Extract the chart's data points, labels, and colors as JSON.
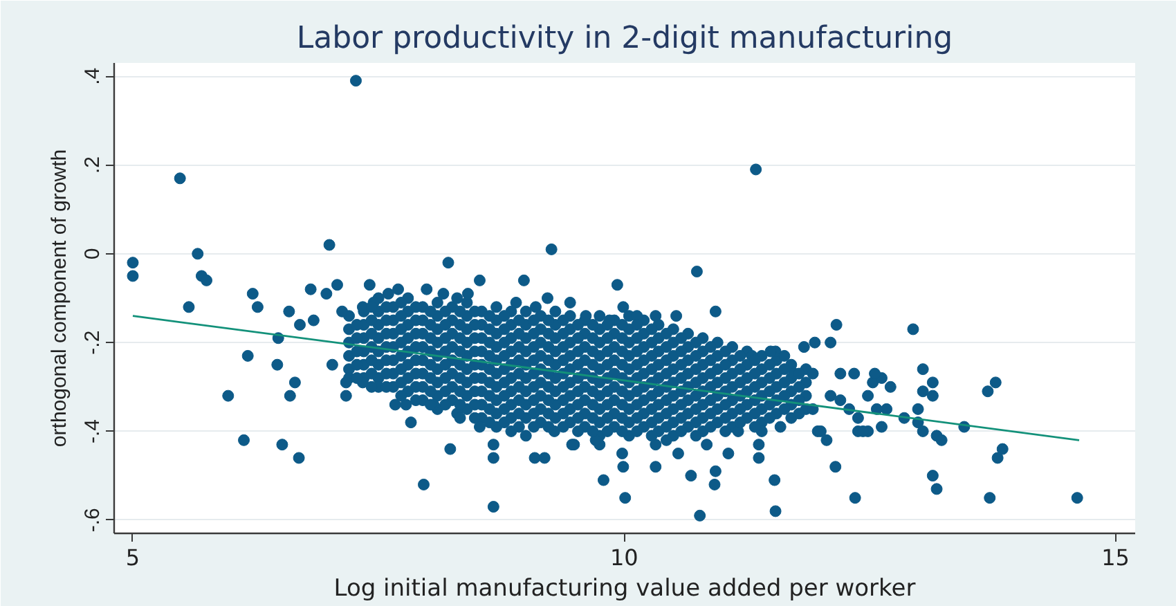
{
  "chart_data": {
    "type": "scatter",
    "title": "Labor productivity in 2-digit manufacturing",
    "xlabel": "Log initial manufacturing value added per worker",
    "ylabel": "orthogonal component of growth",
    "xlim": [
      4.81,
      15.2
    ],
    "ylim": [
      -0.63,
      0.43
    ],
    "xticks": [
      5,
      10,
      15
    ],
    "yticks": [
      {
        "value": -0.6,
        "label": "-.6"
      },
      {
        "value": -0.4,
        "label": "-.4"
      },
      {
        "value": -0.2,
        "label": "-.2"
      },
      0,
      {
        "value": 0.2,
        "label": ".2"
      },
      {
        "value": 0.4,
        "label": ".4"
      }
    ],
    "grid": "y",
    "series": [
      {
        "color": "#0d5a88",
        "marker": "circle",
        "x": [
          7.2,
          7.2,
          7.2,
          7.2,
          7.2,
          7.2,
          7.35,
          7.35,
          7.35,
          7.35,
          7.35,
          7.35,
          7.5,
          7.5,
          7.5,
          7.5,
          7.5,
          7.5,
          7.5,
          7.5,
          7.65,
          7.65,
          7.65,
          7.65,
          7.65,
          7.65,
          7.65,
          7.8,
          7.8,
          7.8,
          7.8,
          7.8,
          7.8,
          7.8,
          7.8,
          7.95,
          7.95,
          7.95,
          7.95,
          7.95,
          7.95,
          7.95,
          7.95,
          8.1,
          8.1,
          8.1,
          8.1,
          8.1,
          8.1,
          8.1,
          8.1,
          8.1,
          8.25,
          8.25,
          8.25,
          8.25,
          8.25,
          8.25,
          8.25,
          8.25,
          8.4,
          8.4,
          8.4,
          8.4,
          8.4,
          8.4,
          8.4,
          8.4,
          8.4,
          8.55,
          8.55,
          8.55,
          8.55,
          8.55,
          8.55,
          8.55,
          8.55,
          8.55,
          8.7,
          8.7,
          8.7,
          8.7,
          8.7,
          8.7,
          8.7,
          8.7,
          8.7,
          8.7,
          8.85,
          8.85,
          8.85,
          8.85,
          8.85,
          8.85,
          8.85,
          8.85,
          8.85,
          8.85,
          9.0,
          9.0,
          9.0,
          9.0,
          9.0,
          9.0,
          9.0,
          9.0,
          9.0,
          9.15,
          9.15,
          9.15,
          9.15,
          9.15,
          9.15,
          9.15,
          9.15,
          9.15,
          9.3,
          9.3,
          9.3,
          9.3,
          9.3,
          9.3,
          9.3,
          9.3,
          9.3,
          9.45,
          9.45,
          9.45,
          9.45,
          9.45,
          9.45,
          9.45,
          9.45,
          9.45,
          9.6,
          9.6,
          9.6,
          9.6,
          9.6,
          9.6,
          9.6,
          9.6,
          9.6,
          9.75,
          9.75,
          9.75,
          9.75,
          9.75,
          9.75,
          9.75,
          9.75,
          9.75,
          9.75,
          9.9,
          9.9,
          9.9,
          9.9,
          9.9,
          9.9,
          9.9,
          9.9,
          9.9,
          10.05,
          10.05,
          10.05,
          10.05,
          10.05,
          10.05,
          10.05,
          10.05,
          10.05,
          10.05,
          10.2,
          10.2,
          10.2,
          10.2,
          10.2,
          10.2,
          10.2,
          10.2,
          10.2,
          10.35,
          10.35,
          10.35,
          10.35,
          10.35,
          10.35,
          10.35,
          10.35,
          10.35,
          10.5,
          10.5,
          10.5,
          10.5,
          10.5,
          10.5,
          10.5,
          10.5,
          10.5,
          10.65,
          10.65,
          10.65,
          10.65,
          10.65,
          10.65,
          10.65,
          10.65,
          10.8,
          10.8,
          10.8,
          10.8,
          10.8,
          10.8,
          10.8,
          10.8,
          10.95,
          10.95,
          10.95,
          10.95,
          10.95,
          10.95,
          10.95,
          11.1,
          11.1,
          11.1,
          11.1,
          11.1,
          11.1,
          11.1,
          11.25,
          11.25,
          11.25,
          11.25,
          11.25,
          11.25,
          11.4,
          11.4,
          11.4,
          11.4,
          11.4,
          11.4,
          11.55,
          11.55,
          11.55,
          11.55,
          11.55,
          11.7,
          11.7,
          11.7,
          11.7,
          11.7,
          11.85,
          11.85,
          11.85,
          11.85,
          7.27,
          5.48,
          5.0,
          5.0,
          5.66,
          5.7,
          5.75,
          5.57,
          7.0,
          6.22,
          6.27,
          6.59,
          6.48,
          6.17,
          6.47,
          5.97,
          6.65,
          6.6,
          6.13,
          6.52,
          6.69,
          6.81,
          6.97,
          7.08,
          7.17,
          7.17,
          7.83,
          7.67,
          7.41,
          8.67,
          7.96,
          8.23,
          8.67,
          8.67,
          9.09,
          9.19,
          9.49,
          9.79,
          9.99,
          10.01,
          10.32,
          9.75,
          9.98,
          9.26,
          8.21,
          8.53,
          8.98,
          9.93,
          9.22,
          9.45,
          9.99,
          7.99,
          8.16,
          8.41,
          11.34,
          10.74,
          10.93,
          12.16,
          12.94,
          11.94,
          12.1,
          13.04,
          13.14,
          13.04,
          13.14,
          13.78,
          13.7,
          13.46,
          13.85,
          13.8,
          14.61,
          13.72,
          13.14,
          13.18,
          12.35,
          12.15,
          11.54,
          10.77,
          11.53,
          10.68,
          10.93,
          10.92,
          11.06,
          11.37,
          11.37,
          10.53,
          10.32,
          6.7,
          6.84,
          7.13,
          7.34,
          7.03,
          7.34,
          7.78,
          8.06,
          8.3,
          8.53,
          9.0,
          9.29,
          9.71,
          11.83,
          11.54,
          11.63,
          11.73,
          11.92,
          12.2,
          12.34,
          12.53,
          12.62,
          12.71,
          12.48,
          12.57,
          12.67,
          12.85,
          12.99,
          13.04,
          13.18,
          13.23,
          12.99,
          12.62,
          12.38,
          12.48,
          11.97,
          12.06,
          12.29,
          12.38,
          12.1,
          12.2,
          11.92,
          9.47,
          10.55,
          10.84,
          11.16,
          11.4,
          11.59,
          10.32,
          9.61,
          9.85,
          10.13,
          11.49,
          11.3,
          12.55,
          12.0,
          12.43,
          7.6,
          7.7,
          8.3,
          7.45,
          9.1,
          8.9,
          7.28,
          7.28,
          7.28,
          7.28,
          7.28,
          7.43,
          7.43,
          7.43,
          7.43,
          7.43,
          7.43,
          7.43,
          7.58,
          7.58,
          7.58,
          7.58,
          7.58,
          7.58,
          7.58,
          7.73,
          7.73,
          7.73,
          7.73,
          7.73,
          7.73,
          7.73,
          7.73,
          7.88,
          7.88,
          7.88,
          7.88,
          7.88,
          7.88,
          7.88,
          7.88,
          8.03,
          8.03,
          8.03,
          8.03,
          8.03,
          8.03,
          8.03,
          8.03,
          8.18,
          8.18,
          8.18,
          8.18,
          8.18,
          8.18,
          8.18,
          8.18,
          8.33,
          8.33,
          8.33,
          8.33,
          8.33,
          8.33,
          8.33,
          8.33,
          8.33,
          8.48,
          8.48,
          8.48,
          8.48,
          8.48,
          8.48,
          8.48,
          8.48,
          8.48,
          8.63,
          8.63,
          8.63,
          8.63,
          8.63,
          8.63,
          8.63,
          8.63,
          8.63,
          8.78,
          8.78,
          8.78,
          8.78,
          8.78,
          8.78,
          8.78,
          8.78,
          8.78,
          8.93,
          8.93,
          8.93,
          8.93,
          8.93,
          8.93,
          8.93,
          8.93,
          8.93,
          9.08,
          9.08,
          9.08,
          9.08,
          9.08,
          9.08,
          9.08,
          9.08,
          9.08,
          9.23,
          9.23,
          9.23,
          9.23,
          9.23,
          9.23,
          9.23,
          9.23,
          9.23,
          9.38,
          9.38,
          9.38,
          9.38,
          9.38,
          9.38,
          9.38,
          9.38,
          9.38,
          9.53,
          9.53,
          9.53,
          9.53,
          9.53,
          9.53,
          9.53,
          9.53,
          9.53,
          9.68,
          9.68,
          9.68,
          9.68,
          9.68,
          9.68,
          9.68,
          9.68,
          9.68,
          9.83,
          9.83,
          9.83,
          9.83,
          9.83,
          9.83,
          9.83,
          9.83,
          9.83,
          9.98,
          9.98,
          9.98,
          9.98,
          9.98,
          9.98,
          9.98,
          9.98,
          9.98,
          10.13,
          10.13,
          10.13,
          10.13,
          10.13,
          10.13,
          10.13,
          10.13,
          10.13,
          10.28,
          10.28,
          10.28,
          10.28,
          10.28,
          10.28,
          10.28,
          10.28,
          10.28,
          10.43,
          10.43,
          10.43,
          10.43,
          10.43,
          10.43,
          10.43,
          10.43,
          10.43,
          10.58,
          10.58,
          10.58,
          10.58,
          10.58,
          10.58,
          10.58,
          10.58,
          10.73,
          10.73,
          10.73,
          10.73,
          10.73,
          10.73,
          10.73,
          10.73,
          10.88,
          10.88,
          10.88,
          10.88,
          10.88,
          10.88,
          10.88,
          11.03,
          11.03,
          11.03,
          11.03,
          11.03,
          11.03,
          11.03,
          11.18,
          11.18,
          11.18,
          11.18,
          11.18,
          11.18,
          11.33,
          11.33,
          11.33,
          11.33,
          11.33,
          11.33,
          11.48,
          11.48,
          11.48,
          11.48,
          11.48,
          11.63,
          11.63,
          11.63,
          11.63,
          11.78,
          11.78,
          11.78,
          11.78
        ],
        "values": [
          -0.14,
          -0.17,
          -0.2,
          -0.23,
          -0.26,
          -0.28,
          -0.13,
          -0.16,
          -0.19,
          -0.22,
          -0.25,
          -0.28,
          -0.1,
          -0.13,
          -0.16,
          -0.19,
          -0.22,
          -0.25,
          -0.28,
          -0.3,
          -0.12,
          -0.15,
          -0.18,
          -0.21,
          -0.24,
          -0.27,
          -0.3,
          -0.1,
          -0.13,
          -0.16,
          -0.19,
          -0.22,
          -0.25,
          -0.28,
          -0.31,
          -0.12,
          -0.15,
          -0.18,
          -0.21,
          -0.24,
          -0.27,
          -0.3,
          -0.33,
          -0.11,
          -0.14,
          -0.17,
          -0.2,
          -0.23,
          -0.26,
          -0.29,
          -0.32,
          -0.35,
          -0.12,
          -0.15,
          -0.18,
          -0.21,
          -0.24,
          -0.27,
          -0.3,
          -0.33,
          -0.11,
          -0.14,
          -0.17,
          -0.2,
          -0.23,
          -0.26,
          -0.29,
          -0.32,
          -0.35,
          -0.13,
          -0.16,
          -0.19,
          -0.22,
          -0.25,
          -0.28,
          -0.31,
          -0.34,
          -0.37,
          -0.12,
          -0.15,
          -0.18,
          -0.21,
          -0.24,
          -0.27,
          -0.3,
          -0.33,
          -0.36,
          -0.39,
          -0.13,
          -0.16,
          -0.19,
          -0.22,
          -0.25,
          -0.28,
          -0.31,
          -0.34,
          -0.37,
          -0.4,
          -0.13,
          -0.16,
          -0.19,
          -0.22,
          -0.25,
          -0.28,
          -0.31,
          -0.34,
          -0.37,
          -0.14,
          -0.17,
          -0.2,
          -0.23,
          -0.26,
          -0.29,
          -0.32,
          -0.35,
          -0.38,
          -0.13,
          -0.16,
          -0.19,
          -0.22,
          -0.25,
          -0.28,
          -0.31,
          -0.34,
          -0.37,
          -0.14,
          -0.17,
          -0.2,
          -0.23,
          -0.26,
          -0.29,
          -0.32,
          -0.35,
          -0.38,
          -0.15,
          -0.18,
          -0.21,
          -0.24,
          -0.27,
          -0.3,
          -0.33,
          -0.36,
          -0.39,
          -0.14,
          -0.17,
          -0.2,
          -0.23,
          -0.26,
          -0.29,
          -0.32,
          -0.35,
          -0.38,
          -0.41,
          -0.15,
          -0.18,
          -0.21,
          -0.24,
          -0.27,
          -0.3,
          -0.33,
          -0.36,
          -0.39,
          -0.14,
          -0.17,
          -0.2,
          -0.23,
          -0.26,
          -0.29,
          -0.32,
          -0.35,
          -0.38,
          -0.41,
          -0.15,
          -0.18,
          -0.21,
          -0.24,
          -0.27,
          -0.3,
          -0.33,
          -0.36,
          -0.39,
          -0.16,
          -0.19,
          -0.22,
          -0.25,
          -0.28,
          -0.31,
          -0.34,
          -0.37,
          -0.4,
          -0.17,
          -0.2,
          -0.23,
          -0.26,
          -0.29,
          -0.32,
          -0.35,
          -0.38,
          -0.41,
          -0.18,
          -0.21,
          -0.24,
          -0.27,
          -0.3,
          -0.33,
          -0.36,
          -0.39,
          -0.19,
          -0.22,
          -0.25,
          -0.28,
          -0.31,
          -0.34,
          -0.37,
          -0.4,
          -0.2,
          -0.23,
          -0.26,
          -0.29,
          -0.32,
          -0.35,
          -0.38,
          -0.21,
          -0.24,
          -0.27,
          -0.3,
          -0.33,
          -0.36,
          -0.39,
          -0.22,
          -0.25,
          -0.28,
          -0.31,
          -0.34,
          -0.37,
          -0.23,
          -0.26,
          -0.29,
          -0.32,
          -0.35,
          -0.38,
          -0.24,
          -0.27,
          -0.3,
          -0.33,
          -0.36,
          -0.25,
          -0.28,
          -0.31,
          -0.34,
          -0.37,
          -0.26,
          -0.29,
          -0.32,
          -0.35,
          0.39,
          0.17,
          -0.02,
          -0.05,
          0.0,
          -0.05,
          -0.06,
          -0.12,
          0.02,
          -0.09,
          -0.12,
          -0.13,
          -0.19,
          -0.23,
          -0.25,
          -0.32,
          -0.29,
          -0.32,
          -0.42,
          -0.43,
          -0.46,
          -0.08,
          -0.09,
          -0.07,
          -0.29,
          -0.32,
          -0.38,
          -0.34,
          -0.07,
          -0.57,
          -0.52,
          -0.44,
          -0.46,
          -0.43,
          -0.46,
          -0.46,
          -0.43,
          -0.51,
          -0.48,
          -0.55,
          -0.48,
          -0.43,
          -0.45,
          0.01,
          -0.02,
          -0.06,
          -0.06,
          -0.07,
          -0.1,
          -0.11,
          -0.12,
          -0.08,
          -0.09,
          -0.09,
          0.19,
          -0.04,
          -0.13,
          -0.16,
          -0.17,
          -0.2,
          -0.2,
          -0.26,
          -0.29,
          -0.31,
          -0.32,
          -0.29,
          -0.31,
          -0.39,
          -0.44,
          -0.46,
          -0.55,
          -0.55,
          -0.5,
          -0.53,
          -0.55,
          -0.48,
          -0.58,
          -0.59,
          -0.51,
          -0.5,
          -0.49,
          -0.52,
          -0.45,
          -0.43,
          -0.46,
          -0.14,
          -0.14,
          -0.16,
          -0.15,
          -0.13,
          -0.12,
          -0.25,
          -0.29,
          -0.34,
          -0.34,
          -0.36,
          -0.39,
          -0.41,
          -0.4,
          -0.42,
          -0.21,
          -0.22,
          -0.23,
          -0.27,
          -0.27,
          -0.27,
          -0.27,
          -0.29,
          -0.28,
          -0.3,
          -0.32,
          -0.35,
          -0.35,
          -0.37,
          -0.38,
          -0.4,
          -0.41,
          -0.42,
          -0.35,
          -0.39,
          -0.4,
          -0.4,
          -0.4,
          -0.42,
          -0.35,
          -0.37,
          -0.32,
          -0.33,
          -0.35,
          -0.43,
          -0.45,
          -0.43,
          -0.4,
          -0.4,
          -0.39,
          -0.43,
          -0.14,
          -0.15,
          -0.14,
          -0.22,
          -0.23,
          -0.27,
          -0.4,
          -0.4,
          -0.09,
          -0.08,
          -0.1,
          -0.11,
          -0.12,
          -0.11,
          -0.16,
          -0.19,
          -0.22,
          -0.25,
          -0.28,
          -0.12,
          -0.15,
          -0.18,
          -0.21,
          -0.24,
          -0.27,
          -0.3,
          -0.12,
          -0.15,
          -0.18,
          -0.21,
          -0.24,
          -0.27,
          -0.3,
          -0.11,
          -0.14,
          -0.17,
          -0.2,
          -0.23,
          -0.26,
          -0.29,
          -0.32,
          -0.12,
          -0.15,
          -0.18,
          -0.21,
          -0.24,
          -0.27,
          -0.3,
          -0.33,
          -0.13,
          -0.16,
          -0.19,
          -0.22,
          -0.25,
          -0.28,
          -0.31,
          -0.34,
          -0.13,
          -0.16,
          -0.19,
          -0.22,
          -0.25,
          -0.28,
          -0.31,
          -0.34,
          -0.13,
          -0.16,
          -0.19,
          -0.22,
          -0.25,
          -0.28,
          -0.31,
          -0.34,
          -0.37,
          -0.13,
          -0.16,
          -0.19,
          -0.22,
          -0.25,
          -0.28,
          -0.31,
          -0.34,
          -0.37,
          -0.14,
          -0.17,
          -0.2,
          -0.23,
          -0.26,
          -0.29,
          -0.32,
          -0.35,
          -0.38,
          -0.14,
          -0.17,
          -0.2,
          -0.23,
          -0.26,
          -0.29,
          -0.32,
          -0.35,
          -0.38,
          -0.15,
          -0.18,
          -0.21,
          -0.24,
          -0.27,
          -0.3,
          -0.33,
          -0.36,
          -0.39,
          -0.15,
          -0.18,
          -0.21,
          -0.24,
          -0.27,
          -0.3,
          -0.33,
          -0.36,
          -0.39,
          -0.15,
          -0.18,
          -0.21,
          -0.24,
          -0.27,
          -0.3,
          -0.33,
          -0.36,
          -0.39,
          -0.15,
          -0.18,
          -0.21,
          -0.24,
          -0.27,
          -0.3,
          -0.33,
          -0.36,
          -0.39,
          -0.16,
          -0.19,
          -0.22,
          -0.25,
          -0.28,
          -0.31,
          -0.34,
          -0.37,
          -0.4,
          -0.16,
          -0.19,
          -0.22,
          -0.25,
          -0.28,
          -0.31,
          -0.34,
          -0.37,
          -0.4,
          -0.16,
          -0.19,
          -0.22,
          -0.25,
          -0.28,
          -0.31,
          -0.34,
          -0.37,
          -0.4,
          -0.16,
          -0.19,
          -0.22,
          -0.25,
          -0.28,
          -0.31,
          -0.34,
          -0.37,
          -0.4,
          -0.16,
          -0.19,
          -0.22,
          -0.25,
          -0.28,
          -0.31,
          -0.34,
          -0.37,
          -0.4,
          -0.17,
          -0.2,
          -0.23,
          -0.26,
          -0.29,
          -0.32,
          -0.35,
          -0.38,
          -0.41,
          -0.18,
          -0.21,
          -0.24,
          -0.27,
          -0.3,
          -0.33,
          -0.36,
          -0.39,
          -0.42,
          -0.19,
          -0.22,
          -0.25,
          -0.28,
          -0.31,
          -0.34,
          -0.37,
          -0.4,
          -0.2,
          -0.23,
          -0.26,
          -0.29,
          -0.32,
          -0.35,
          -0.38,
          -0.41,
          -0.21,
          -0.24,
          -0.27,
          -0.3,
          -0.33,
          -0.36,
          -0.39,
          -0.22,
          -0.25,
          -0.28,
          -0.31,
          -0.34,
          -0.37,
          -0.4,
          -0.23,
          -0.26,
          -0.29,
          -0.32,
          -0.35,
          -0.38,
          -0.24,
          -0.27,
          -0.3,
          -0.33,
          -0.36,
          -0.39,
          -0.25,
          -0.28,
          -0.31,
          -0.34,
          -0.37,
          -0.26,
          -0.29,
          -0.32,
          -0.35,
          -0.27,
          -0.3,
          -0.33,
          -0.36
        ]
      },
      {
        "type": "line",
        "color": "#13917a",
        "x": [
          5.0,
          14.63
        ],
        "values": [
          -0.14,
          -0.42
        ]
      }
    ]
  }
}
